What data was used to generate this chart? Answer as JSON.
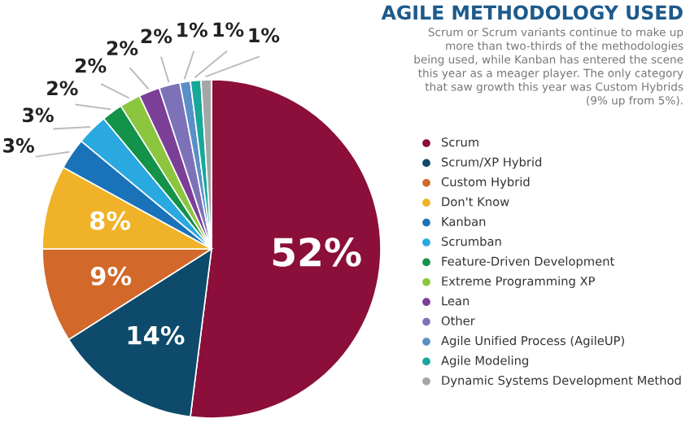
{
  "chart_data": {
    "type": "pie",
    "title": "AGILE METHODOLOGY USED",
    "annotations": [
      "Scrum or Scrum variants continue to make up\nmore than two-thirds of the methodologies\nbeing used, while Kanban has entered the scene\nthis year as a meager player. The only category\nthat saw growth this year was Custom Hybrids\n(9% up from 5%)."
    ],
    "categories": [
      "Scrum",
      "Scrum/XP Hybrid",
      "Custom Hybrid",
      "Don't Know",
      "Kanban",
      "Scrumban",
      "Feature-Driven Development",
      "Extreme Programming XP",
      "Lean",
      "Other",
      "Agile Unified Process (AgileUP)",
      "Agile Modeling",
      "Dynamic Systems Development Method"
    ],
    "values": [
      52,
      14,
      9,
      8,
      3,
      3,
      2,
      2,
      2,
      2,
      1,
      1,
      1
    ],
    "colors": [
      "#8b0f3a",
      "#0e4a6b",
      "#d2692a",
      "#f0b228",
      "#1a73b8",
      "#2aa8e0",
      "#13924a",
      "#8cc63f",
      "#7b3f98",
      "#7d72b8",
      "#5a8fc8",
      "#17a89a",
      "#a6a6a6"
    ],
    "value_labels": [
      "52%",
      "14%",
      "9%",
      "8%",
      "3%",
      "3%",
      "2%",
      "2%",
      "2%",
      "2%",
      "1%",
      "1%",
      "1%"
    ],
    "legend": "right"
  }
}
